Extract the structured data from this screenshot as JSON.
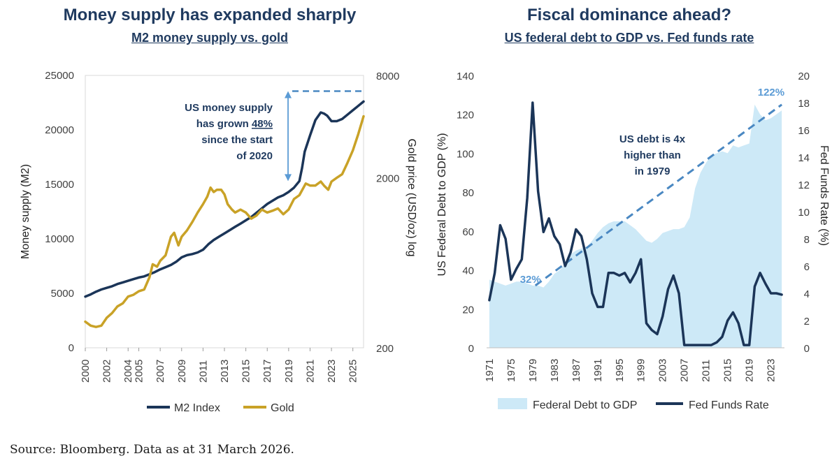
{
  "colors": {
    "navy": "#1b3558",
    "gold": "#c9a227",
    "lightblue": "#cde9f7",
    "dashblue": "#4a88c2",
    "axis": "#404040"
  },
  "source": "Source: Bloomberg. Data as at 31 March 2026.",
  "chart_data": [
    {
      "type": "line",
      "title": "Money supply has expanded sharply",
      "subtitle": "M2 money supply vs. gold",
      "ylabel": "Money supply (M2)",
      "y2label": "Gold price (USD/oz) log",
      "ylim": [
        0,
        25000
      ],
      "y_ticks": [
        "0",
        "5000",
        "10000",
        "15000",
        "20000",
        "25000"
      ],
      "y2lim": [
        200,
        8000
      ],
      "y2_scale": "log",
      "y2_ticks": [
        "200",
        "2000",
        "8000"
      ],
      "x_ticks": [
        "2000",
        "2002",
        "2004",
        "2005",
        "2007",
        "2009",
        "2011",
        "2013",
        "2015",
        "2017",
        "2019",
        "2021",
        "2023",
        "2025"
      ],
      "legend": [
        "M2 Index",
        "Gold"
      ],
      "legend_position": "bottom",
      "annotation": {
        "line1": "US money supply",
        "line2_pre": "has grown ",
        "line2_pct": "48%",
        "line3": "since the start",
        "line4": "of 2020"
      },
      "series": [
        {
          "name": "M2 Index",
          "axis": "left",
          "color": "#1b3558",
          "x": [
            2000.0,
            2000.5,
            2001.0,
            2001.5,
            2002.0,
            2002.5,
            2003.0,
            2003.5,
            2004.0,
            2004.5,
            2005.0,
            2005.5,
            2006.0,
            2006.5,
            2007.0,
            2007.5,
            2008.0,
            2008.5,
            2009.0,
            2009.5,
            2010.0,
            2010.5,
            2011.0,
            2011.5,
            2012.0,
            2012.5,
            2013.0,
            2013.5,
            2014.0,
            2014.5,
            2015.0,
            2015.5,
            2016.0,
            2016.5,
            2017.0,
            2017.5,
            2018.0,
            2018.5,
            2019.0,
            2019.5,
            2020.0,
            2020.25,
            2020.5,
            2021.0,
            2021.5,
            2022.0,
            2022.3,
            2022.6,
            2023.0,
            2023.5,
            2024.0,
            2024.5,
            2025.0,
            2025.5,
            2026.0
          ],
          "values": [
            4700,
            4900,
            5150,
            5350,
            5500,
            5650,
            5850,
            6000,
            6150,
            6300,
            6450,
            6550,
            6750,
            6950,
            7200,
            7400,
            7600,
            7900,
            8300,
            8500,
            8600,
            8750,
            9000,
            9500,
            9900,
            10200,
            10500,
            10800,
            11100,
            11400,
            11700,
            12000,
            12400,
            12800,
            13200,
            13500,
            13800,
            14000,
            14300,
            14700,
            15300,
            16500,
            18000,
            19500,
            20900,
            21600,
            21500,
            21300,
            20800,
            20800,
            21000,
            21400,
            21800,
            22200,
            22600
          ]
        },
        {
          "name": "Gold",
          "axis": "right",
          "color": "#c9a227",
          "x": [
            2000.0,
            2000.5,
            2001.0,
            2001.5,
            2002.0,
            2002.5,
            2003.0,
            2003.5,
            2004.0,
            2004.5,
            2005.0,
            2005.5,
            2006.0,
            2006.3,
            2006.7,
            2007.0,
            2007.5,
            2008.0,
            2008.3,
            2008.7,
            2009.0,
            2009.5,
            2010.0,
            2010.5,
            2011.0,
            2011.4,
            2011.7,
            2012.0,
            2012.3,
            2012.7,
            2013.0,
            2013.3,
            2013.7,
            2014.0,
            2014.5,
            2015.0,
            2015.5,
            2016.0,
            2016.5,
            2017.0,
            2017.5,
            2018.0,
            2018.5,
            2019.0,
            2019.5,
            2020.0,
            2020.6,
            2021.0,
            2021.5,
            2022.0,
            2022.3,
            2022.7,
            2023.0,
            2023.5,
            2024.0,
            2024.5,
            2025.0,
            2025.5,
            2026.0
          ],
          "values": [
            285,
            270,
            265,
            270,
            300,
            320,
            350,
            365,
            400,
            410,
            430,
            440,
            520,
            620,
            600,
            650,
            700,
            900,
            950,
            800,
            900,
            980,
            1100,
            1250,
            1400,
            1550,
            1750,
            1650,
            1700,
            1700,
            1600,
            1400,
            1300,
            1250,
            1300,
            1250,
            1150,
            1200,
            1300,
            1250,
            1280,
            1320,
            1220,
            1300,
            1500,
            1580,
            1850,
            1800,
            1800,
            1900,
            1800,
            1700,
            1900,
            2000,
            2100,
            2450,
            2900,
            3600,
            4600
          ]
        }
      ]
    },
    {
      "type": "line",
      "title": "Fiscal dominance ahead?",
      "subtitle": "US federal debt to GDP vs. Fed funds rate",
      "ylabel": "US Federal Debt to GDP (%)",
      "y2label": "Fed Funds Rate (%)",
      "ylim": [
        0,
        140
      ],
      "y_ticks": [
        "0",
        "20",
        "40",
        "60",
        "80",
        "100",
        "120",
        "140"
      ],
      "y2lim": [
        0,
        20
      ],
      "y2_ticks": [
        "0",
        "2",
        "4",
        "6",
        "8",
        "10",
        "12",
        "14",
        "16",
        "18",
        "20"
      ],
      "x_ticks": [
        "1971",
        "1975",
        "1979",
        "1983",
        "1987",
        "1991",
        "1995",
        "1999",
        "2003",
        "2007",
        "2011",
        "2015",
        "2019",
        "2023"
      ],
      "legend": [
        "Federal Debt to GDP",
        "Fed Funds Rate"
      ],
      "legend_position": "bottom",
      "annotation": {
        "line1": "US debt is 4x",
        "line2": "higher than",
        "line3": "in 1979",
        "start_label": "32%",
        "end_label": "122%"
      },
      "trend": {
        "x": [
          1979.5,
          2025
        ],
        "values": [
          32,
          125
        ]
      },
      "series": [
        {
          "name": "Federal Debt to GDP",
          "axis": "left",
          "type": "area",
          "color": "#cde9f7",
          "x": [
            1971,
            1972,
            1973,
            1974,
            1975,
            1976,
            1977,
            1978,
            1979,
            1980,
            1981,
            1982,
            1983,
            1984,
            1985,
            1986,
            1987,
            1988,
            1989,
            1990,
            1991,
            1992,
            1993,
            1994,
            1995,
            1996,
            1997,
            1998,
            1999,
            2000,
            2001,
            2002,
            2003,
            2004,
            2005,
            2006,
            2007,
            2008,
            2009,
            2010,
            2011,
            2012,
            2013,
            2014,
            2015,
            2016,
            2017,
            2018,
            2019,
            2020,
            2021,
            2022,
            2023,
            2024,
            2025
          ],
          "values": [
            35,
            34,
            33,
            32,
            33,
            34,
            34,
            33,
            32,
            32,
            31,
            34,
            38,
            40,
            43,
            48,
            50,
            51,
            52,
            55,
            59,
            62,
            64,
            65,
            65,
            65,
            63,
            61,
            58,
            55,
            54,
            56,
            59,
            60,
            61,
            61,
            62,
            67,
            82,
            90,
            95,
            99,
            100,
            101,
            100,
            104,
            103,
            104,
            105,
            125,
            120,
            117,
            118,
            120,
            122
          ]
        },
        {
          "name": "Fed Funds Rate",
          "axis": "right",
          "color": "#1b3558",
          "x": [
            1971,
            1972,
            1973,
            1974,
            1975,
            1976,
            1977,
            1978,
            1979,
            1980,
            1981,
            1982,
            1983,
            1984,
            1985,
            1986,
            1987,
            1988,
            1989,
            1990,
            1991,
            1992,
            1993,
            1994,
            1995,
            1996,
            1997,
            1998,
            1999,
            2000,
            2001,
            2002,
            2003,
            2004,
            2005,
            2006,
            2007,
            2008,
            2009,
            2010,
            2011,
            2012,
            2013,
            2014,
            2015,
            2016,
            2017,
            2018,
            2019,
            2020,
            2021,
            2022,
            2023,
            2024,
            2025
          ],
          "values": [
            3.5,
            5.5,
            9.0,
            8.0,
            5.0,
            5.8,
            6.5,
            11.0,
            18.0,
            11.5,
            8.5,
            9.5,
            8.2,
            7.6,
            6.0,
            7.0,
            8.7,
            8.2,
            6.5,
            4.0,
            3.0,
            3.0,
            5.5,
            5.5,
            5.3,
            5.5,
            4.8,
            5.5,
            6.5,
            1.8,
            1.3,
            1.0,
            2.3,
            4.3,
            5.3,
            4.0,
            0.2,
            0.2,
            0.2,
            0.2,
            0.2,
            0.2,
            0.4,
            0.8,
            2.0,
            2.6,
            1.8,
            0.2,
            0.2,
            4.5,
            5.5,
            4.7,
            4.0,
            4.0,
            3.9
          ]
        }
      ]
    }
  ]
}
